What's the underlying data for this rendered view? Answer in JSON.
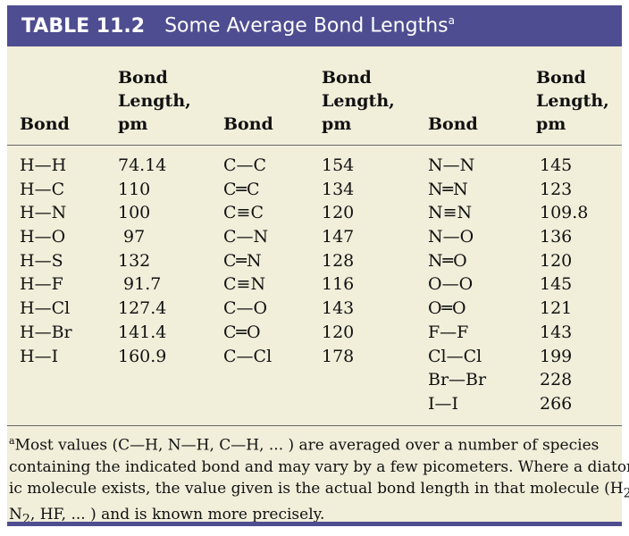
{
  "header": {
    "table_number": "TABLE 11.2",
    "title": "Some Average Bond Lengths",
    "title_marker": "a"
  },
  "columns": {
    "bond_label": "Bond",
    "length_label_1": "Bond",
    "length_label_2": "Length,",
    "length_label_3": "pm"
  },
  "group1": {
    "bonds": [
      "H—H",
      "H—C",
      "H—N",
      "H—O",
      "H—S",
      "H—F",
      "H—Cl",
      "H—Br",
      "H—I"
    ],
    "lengths": [
      "74.14",
      "110",
      "100",
      " 97",
      "132",
      " 91.7",
      "127.4",
      "141.4",
      "160.9"
    ]
  },
  "group2": {
    "bonds": [
      "C—C",
      "C═C",
      "C≡C",
      "C—N",
      "C═N",
      "C≡N",
      "C—O",
      "C═O",
      "C—Cl"
    ],
    "lengths": [
      "154",
      "134",
      "120",
      "147",
      "128",
      "116",
      "143",
      "120",
      "178"
    ]
  },
  "group3": {
    "bonds": [
      "N—N",
      "N═N",
      "N≡N",
      "N—O",
      "N═O",
      "O—O",
      "O═O",
      "F—F",
      "Cl—Cl",
      "Br—Br",
      "I—I"
    ],
    "lengths": [
      "145",
      "123",
      "109.8",
      "136",
      "120",
      "145",
      "121",
      "143",
      "199",
      "228",
      "266"
    ]
  },
  "footnote": {
    "marker": "a",
    "line1": "Most values (C—H, N—H, C—H, ... ) are averaged over a number of species",
    "line2": "containing the indicated bond and may vary by a few picometers. Where a diatom-",
    "line3_a": "ic molecule exists, the value given is the actual bond length in that molecule (H",
    "line3_sub": "2",
    "line3_b": ",",
    "line4_a": "N",
    "line4_sub": "2",
    "line4_b": ", HF, ... ) and is known more precisely."
  },
  "colors": {
    "header_bg": "#4f4d91",
    "panel_bg": "#f1eeda"
  }
}
